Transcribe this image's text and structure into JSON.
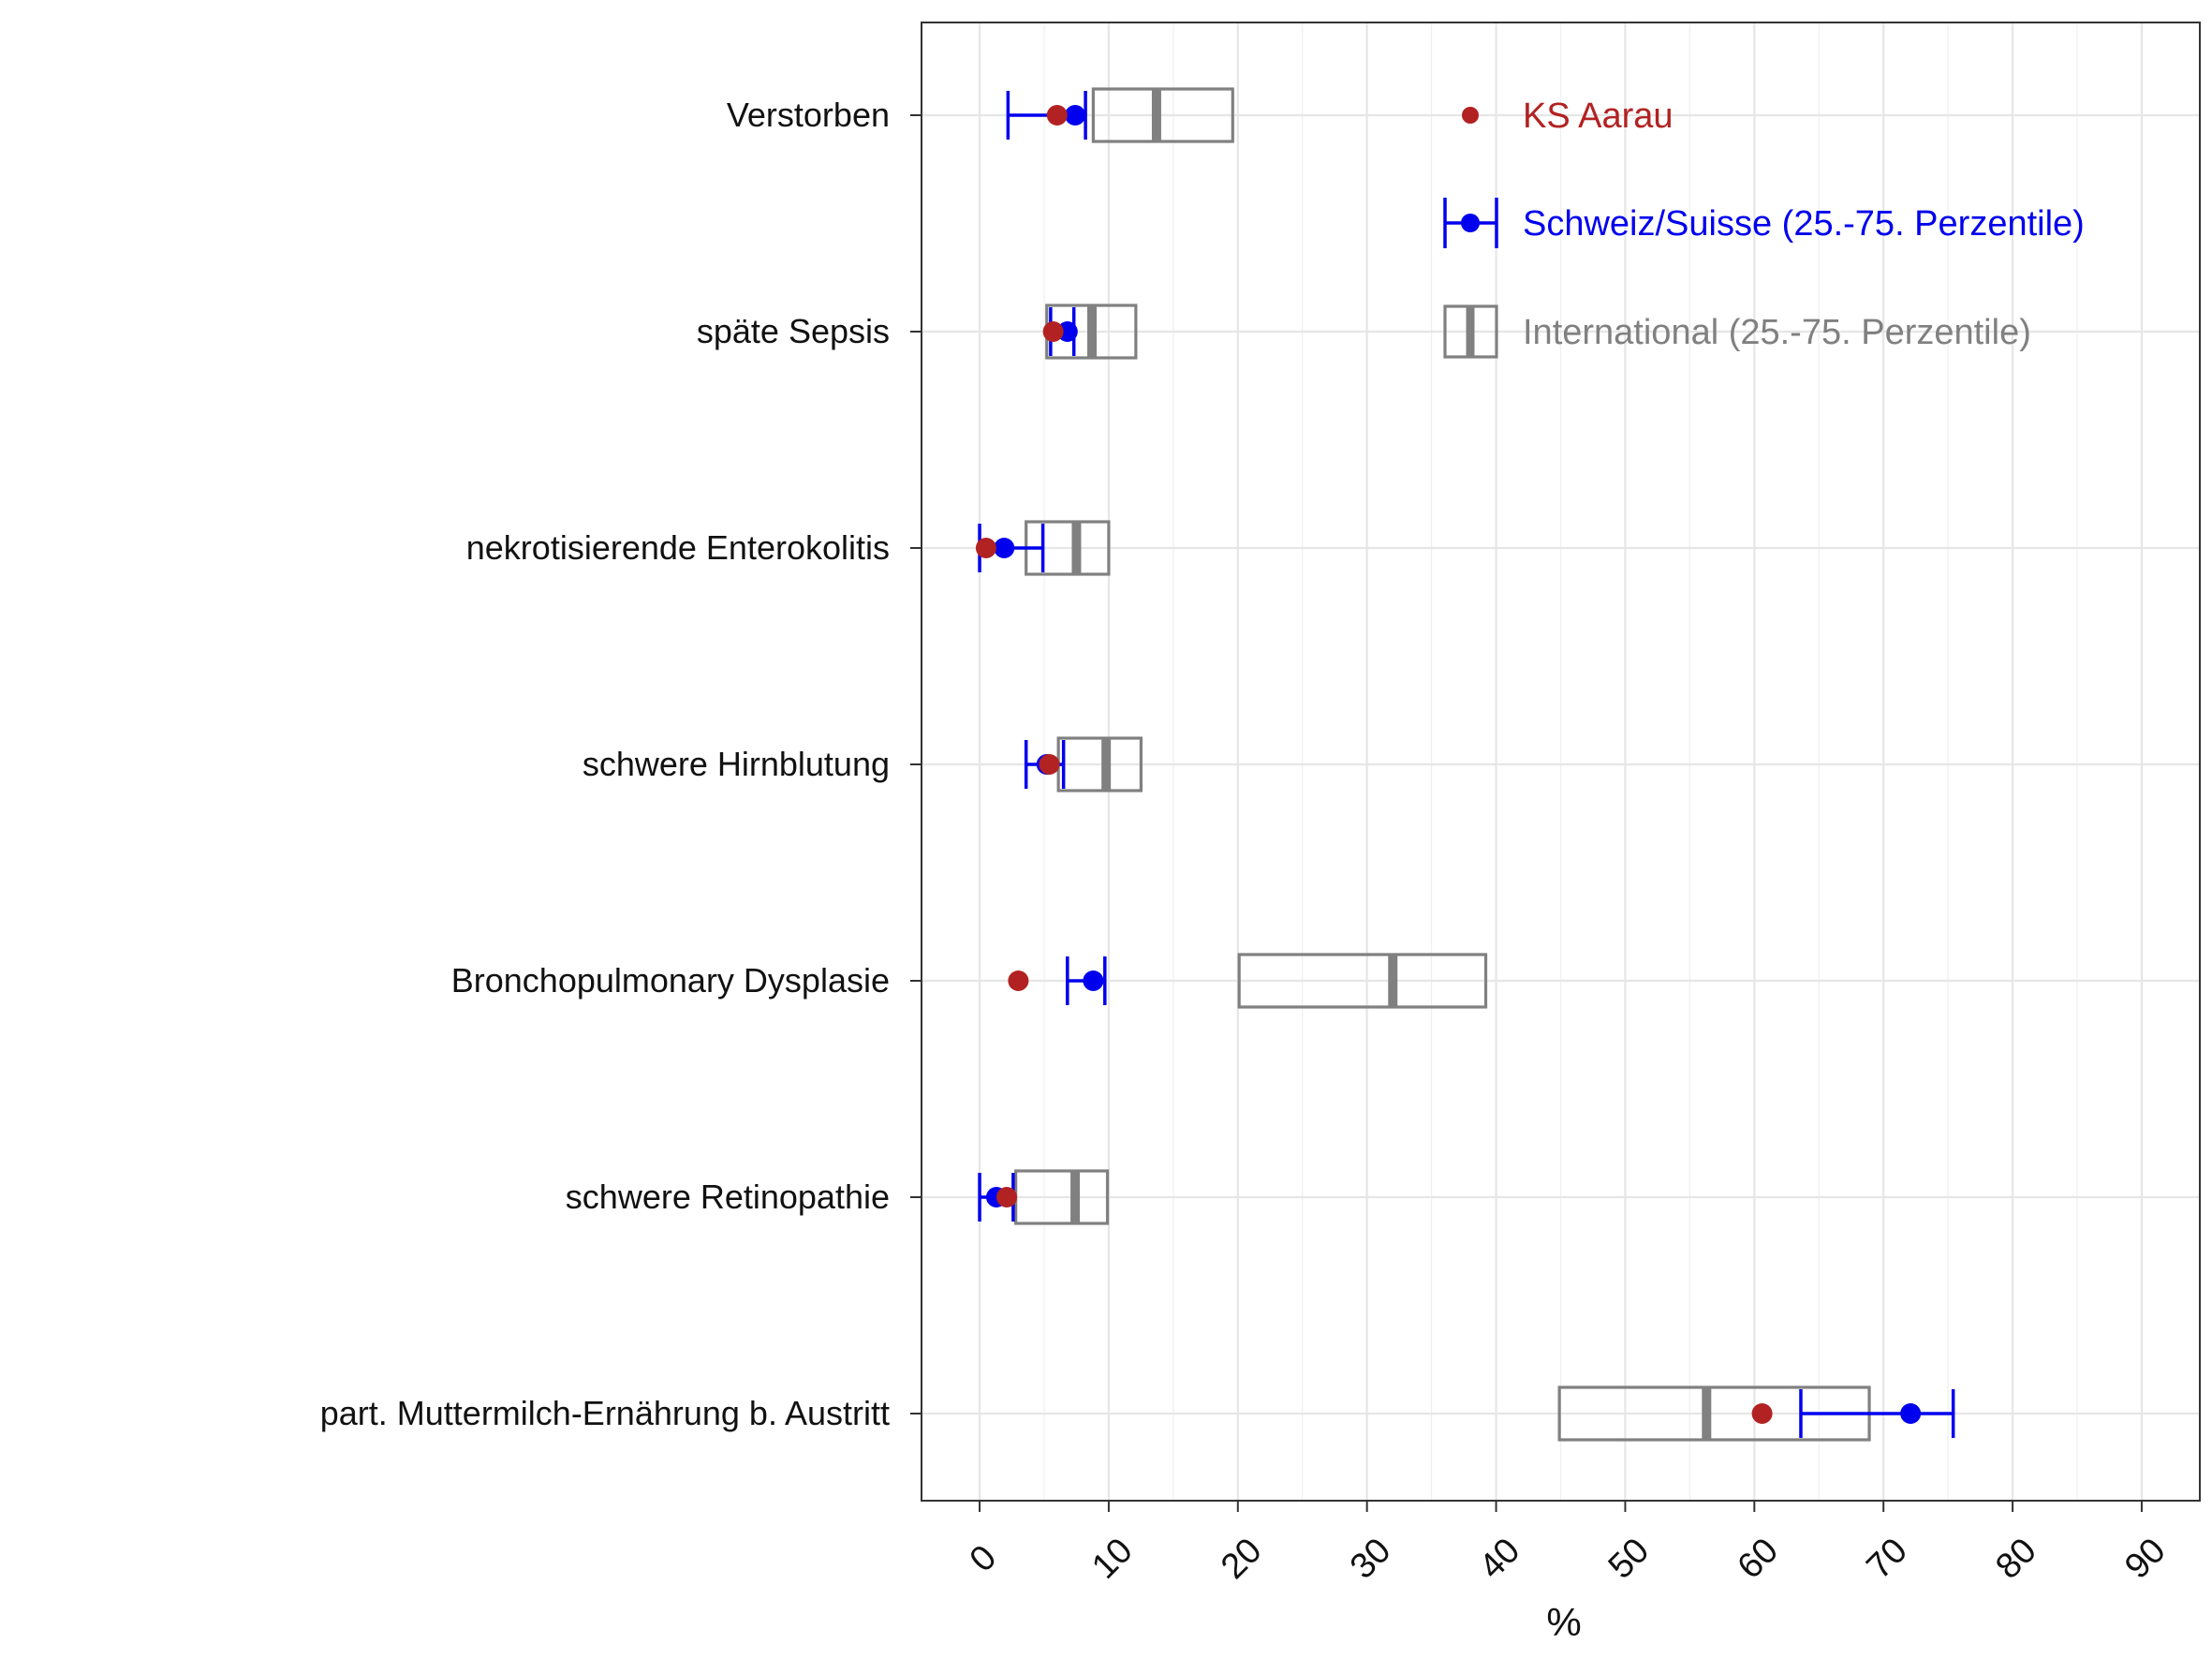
{
  "chart_data": {
    "type": "box",
    "xlabel": "%",
    "xlim": [
      -4.5,
      94.5
    ],
    "xticks": [
      0,
      10,
      20,
      30,
      40,
      50,
      60,
      70,
      80,
      90
    ],
    "grid": true,
    "legend_position": "top-right",
    "colors": {
      "ks": "#b22222",
      "ch": "#0000ee",
      "intl": "#808080"
    },
    "legend": {
      "ks": "KS Aarau",
      "ch": "Schweiz/Suisse (25.-75. Perzentile)",
      "intl": "International (25.-75. Perzentile)"
    },
    "categories": [
      {
        "label": "Verstorben",
        "ks_aarau": 6.0,
        "schweiz": {
          "q1": 2.2,
          "median": 7.4,
          "q3": 8.2
        },
        "international": {
          "q1": 8.8,
          "median": 13.7,
          "q3": 19.6
        }
      },
      {
        "label": "späte Sepsis",
        "ks_aarau": 5.7,
        "schweiz": {
          "q1": 5.5,
          "median": 6.8,
          "q3": 7.3
        },
        "international": {
          "q1": 5.2,
          "median": 8.7,
          "q3": 12.1
        }
      },
      {
        "label": "nekrotisierende Enterokolitis",
        "ks_aarau": 0.5,
        "schweiz": {
          "q1": 0.0,
          "median": 1.9,
          "q3": 4.9
        },
        "international": {
          "q1": 3.6,
          "median": 7.5,
          "q3": 10.0
        }
      },
      {
        "label": "schwere Hirnblutung",
        "ks_aarau": 5.4,
        "schweiz": {
          "q1": 3.6,
          "median": 5.2,
          "q3": 6.5
        },
        "international": {
          "q1": 6.1,
          "median": 9.8,
          "q3": 12.5
        }
      },
      {
        "label": "Bronchopulmonary Dysplasie",
        "ks_aarau": 3.0,
        "schweiz": {
          "q1": 6.8,
          "median": 8.8,
          "q3": 9.7
        },
        "international": {
          "q1": 20.1,
          "median": 32.0,
          "q3": 39.2
        }
      },
      {
        "label": "schwere Retinopathie",
        "ks_aarau": 2.1,
        "schweiz": {
          "q1": 0.0,
          "median": 1.3,
          "q3": 2.6
        },
        "international": {
          "q1": 2.8,
          "median": 7.4,
          "q3": 9.9
        }
      },
      {
        "label": "part. Muttermilch-Ernährung b. Austritt",
        "ks_aarau": 60.6,
        "schweiz": {
          "q1": 63.6,
          "median": 72.1,
          "q3": 75.4
        },
        "international": {
          "q1": 44.9,
          "median": 56.3,
          "q3": 68.9
        }
      }
    ]
  }
}
